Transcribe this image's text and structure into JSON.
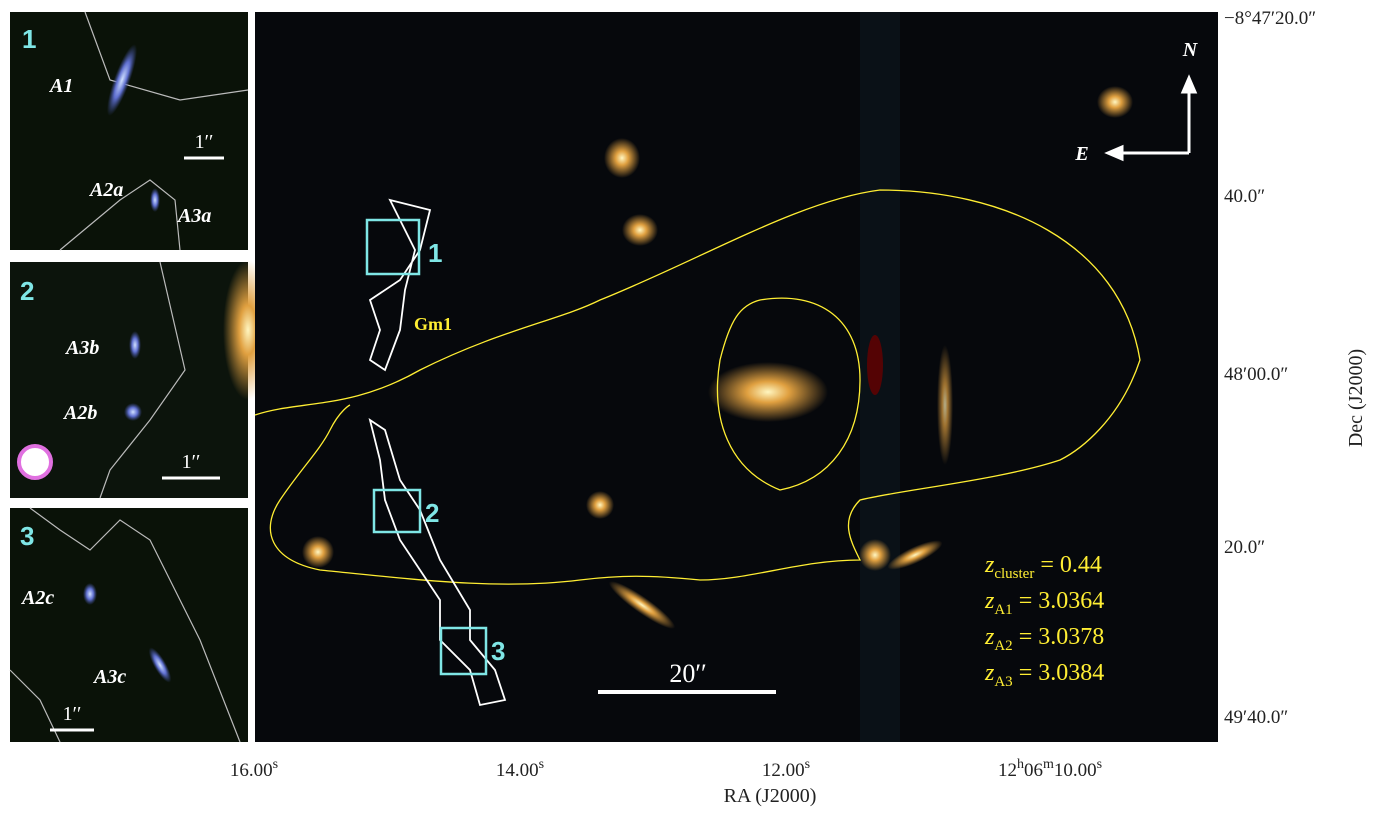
{
  "insets": [
    {
      "number": "1",
      "labels": [
        "A1",
        "A2a",
        "A3a"
      ],
      "scale": "1′′"
    },
    {
      "number": "2",
      "labels": [
        "A3b",
        "A2b"
      ],
      "scale": "1′′"
    },
    {
      "number": "3",
      "labels": [
        "A2c",
        "A3c"
      ],
      "scale": "1′′"
    }
  ],
  "main": {
    "box_labels": [
      "1",
      "2",
      "3"
    ],
    "member_label": "Gm1",
    "scale": "20′′",
    "compass": {
      "north": "N",
      "east": "E"
    },
    "redshifts": [
      {
        "symbol": "z",
        "sub": "cluster",
        "value": "= 0.44"
      },
      {
        "symbol": "z",
        "sub": "A1",
        "value": "= 3.0364"
      },
      {
        "symbol": "z",
        "sub": "A2",
        "value": "= 3.0378"
      },
      {
        "symbol": "z",
        "sub": "A3",
        "value": "= 3.0384"
      }
    ]
  },
  "x_axis": {
    "title": "RA (J2000)",
    "ticks": [
      [
        "16.00",
        "s"
      ],
      [
        "14.00",
        "s"
      ],
      [
        "12.00",
        "s"
      ],
      [
        "12",
        "h",
        "06",
        "m",
        "10.00",
        "s"
      ]
    ]
  },
  "y_axis": {
    "title": "Dec (J2000)",
    "ticks": [
      "−8°47′20.0″",
      "40.0″",
      "48′00.0″",
      "20.0″",
      "49′40.0″"
    ]
  }
}
